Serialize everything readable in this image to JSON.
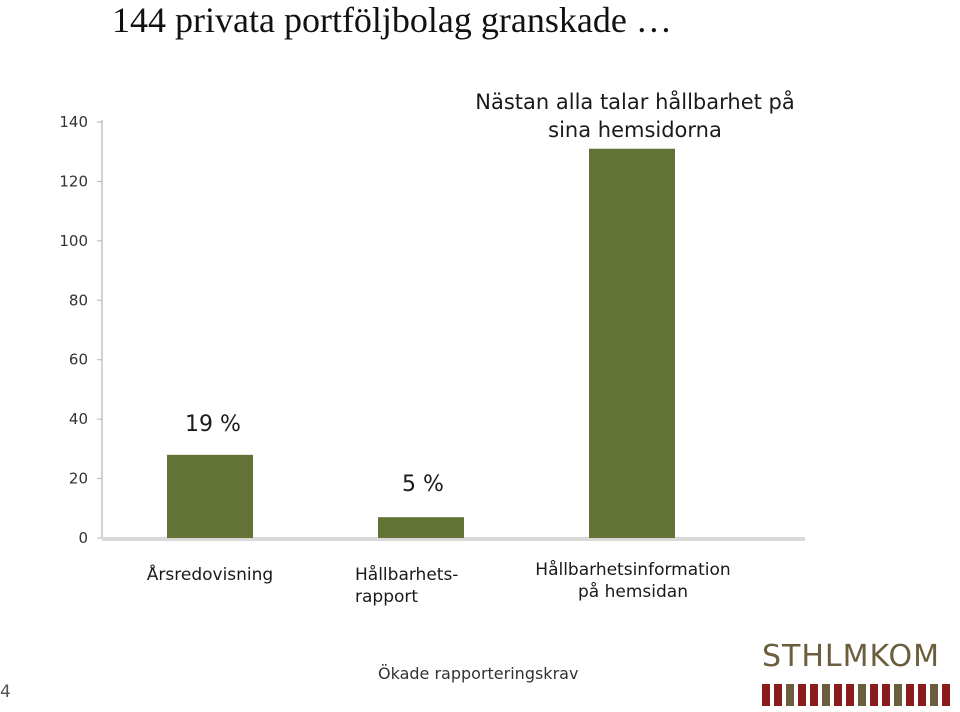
{
  "slide": {
    "title": "144 privata portföljbolag granskade …",
    "footer": "Ökade rapporteringskrav",
    "page_number": "4",
    "logo_text": "STHLMKOM"
  },
  "chart_data": {
    "type": "bar",
    "categories": [
      "Årsredovisning",
      "Hållbarhets-\nrapport",
      "Hållbarhetsinformation\npå hemsidan"
    ],
    "values": [
      28,
      7,
      131
    ],
    "ylim": [
      0,
      140
    ],
    "yticks": [
      "0",
      "20",
      "40",
      "60",
      "80",
      "100",
      "120",
      "140"
    ],
    "bar_color": "#627335",
    "grid": false,
    "annotations": [
      "19 %",
      "5 %",
      "Nästan alla talar hållbarhet på sina hemsidorna"
    ]
  }
}
